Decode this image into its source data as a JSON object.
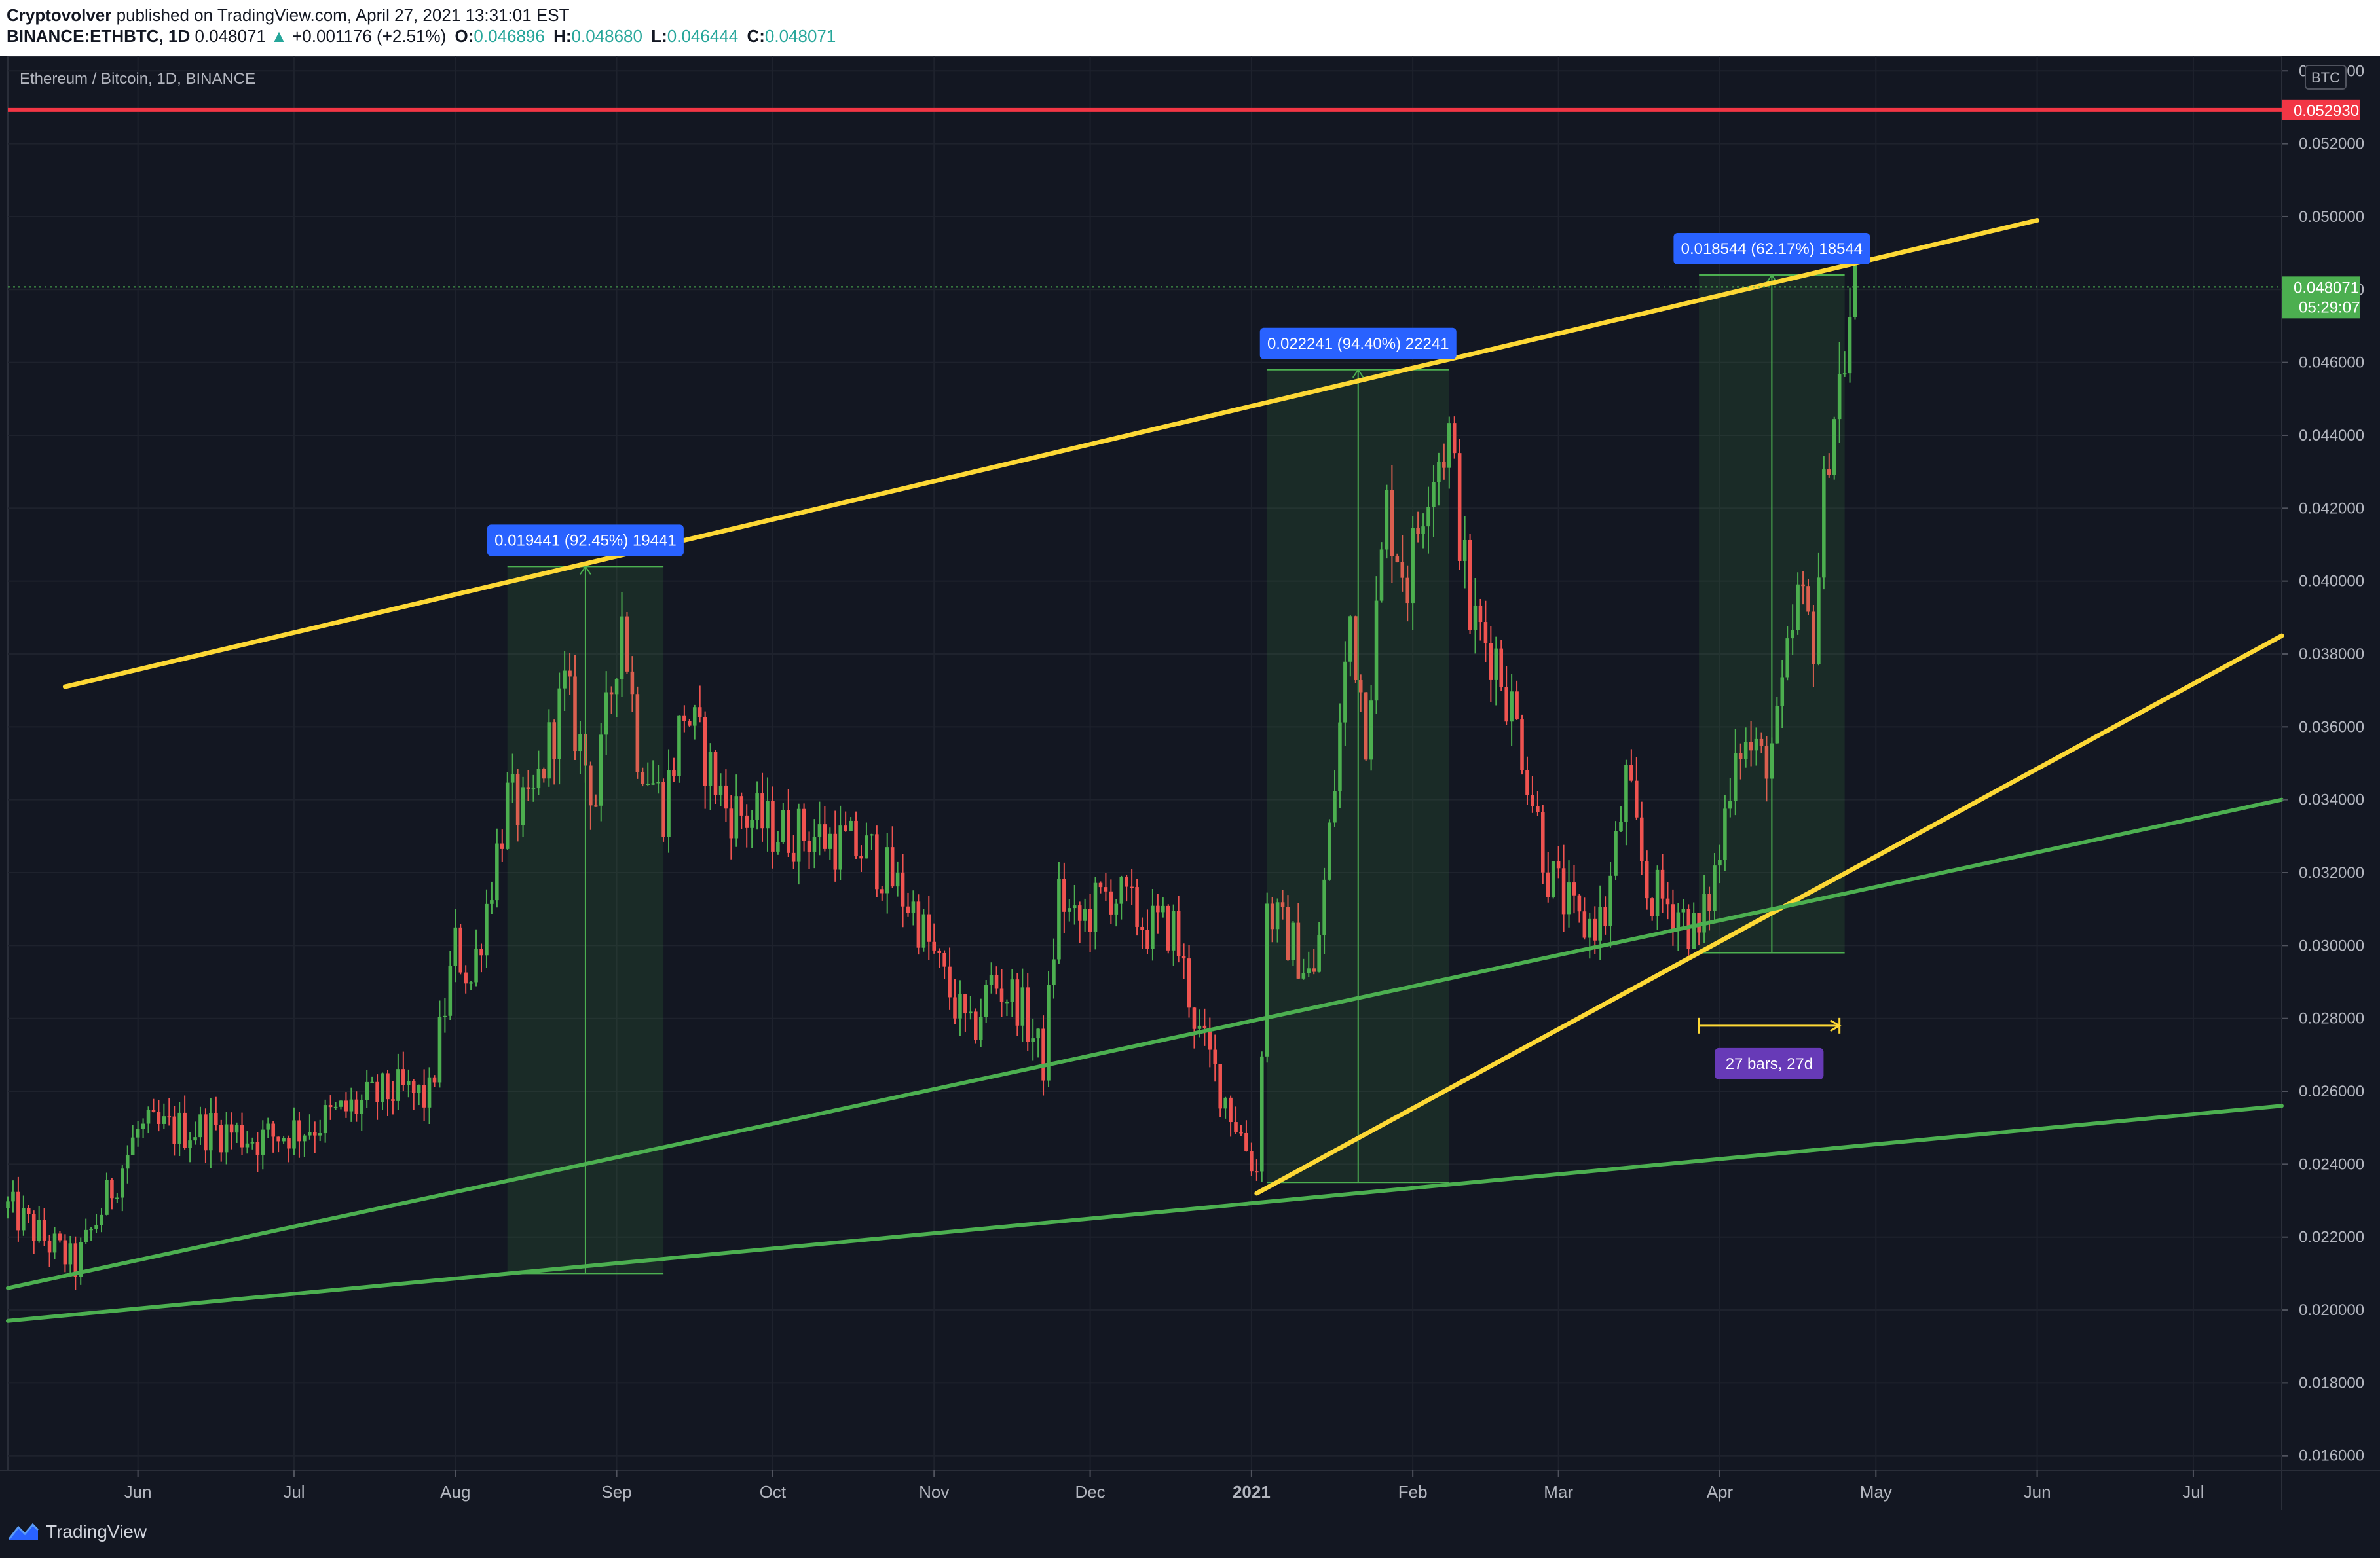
{
  "header": {
    "author": "Cryptovolver",
    "published_text": "published on TradingView.com, April 27, 2021 13:31:01 EST",
    "symbol": "BINANCE:ETHBTC, 1D",
    "last": "0.048071",
    "change": "+0.001176 (+2.51%)",
    "o_label": "O:",
    "o_value": "0.046896",
    "h_label": "H:",
    "h_value": "0.048680",
    "l_label": "L:",
    "l_value": "0.046444",
    "c_label": "C:",
    "c_value": "0.048071"
  },
  "chart_title": "Ethereum / Bitcoin, 1D, BINANCE",
  "currency_badge": "BTC",
  "footer": {
    "brand": "TradingView"
  },
  "colors": {
    "background": "#131722",
    "up": "#4caf50",
    "down": "#ef5350",
    "resistance": "#f23645",
    "trendline_yellow": "#fdd835",
    "trendline_green": "#4caf50",
    "measure_bg": "#2962ff",
    "range_bg": "#673ab7"
  },
  "chart_data": {
    "type": "candlestick",
    "title": "Ethereum / Bitcoin, 1D, BINANCE",
    "x_tick_labels": [
      "Jun",
      "Jul",
      "Aug",
      "Sep",
      "Oct",
      "Nov",
      "Dec",
      "2021",
      "Feb",
      "Mar",
      "Apr",
      "May",
      "Jun",
      "Jul"
    ],
    "x_tick_dates": [
      "2020-06-01",
      "2020-07-01",
      "2020-08-01",
      "2020-09-01",
      "2020-10-01",
      "2020-11-01",
      "2020-12-01",
      "2021-01-01",
      "2021-02-01",
      "2021-03-01",
      "2021-04-01",
      "2021-05-01",
      "2021-06-01",
      "2021-07-01"
    ],
    "y_tick_labels": [
      "0.016000",
      "0.018000",
      "0.020000",
      "0.022000",
      "0.024000",
      "0.026000",
      "0.028000",
      "0.030000",
      "0.032000",
      "0.034000",
      "0.036000",
      "0.038000",
      "0.040000",
      "0.042000",
      "0.044000",
      "0.046000",
      "0.048000",
      "0.050000",
      "0.052000",
      "0.054000"
    ],
    "ylim": [
      0.0156,
      0.0544
    ],
    "xlim": [
      "2020-05-07",
      "2021-07-18"
    ],
    "grid": true,
    "price_anchors": [
      [
        "2020-05-07",
        0.0228
      ],
      [
        "2020-05-20",
        0.0212
      ],
      [
        "2020-06-01",
        0.0249
      ],
      [
        "2020-06-15",
        0.025
      ],
      [
        "2020-06-25",
        0.0247
      ],
      [
        "2020-07-05",
        0.0251
      ],
      [
        "2020-07-20",
        0.026
      ],
      [
        "2020-07-27",
        0.0258
      ],
      [
        "2020-08-01",
        0.03
      ],
      [
        "2020-08-04",
        0.029
      ],
      [
        "2020-08-11",
        0.034
      ],
      [
        "2020-08-15",
        0.0335
      ],
      [
        "2020-08-22",
        0.037
      ],
      [
        "2020-08-28",
        0.034
      ],
      [
        "2020-09-02",
        0.0392
      ],
      [
        "2020-09-05",
        0.0355
      ],
      [
        "2020-09-10",
        0.0338
      ],
      [
        "2020-09-14",
        0.0365
      ],
      [
        "2020-09-22",
        0.0338
      ],
      [
        "2020-10-01",
        0.0332
      ],
      [
        "2020-10-10",
        0.033
      ],
      [
        "2020-10-20",
        0.0325
      ],
      [
        "2020-10-28",
        0.031
      ],
      [
        "2020-11-03",
        0.029
      ],
      [
        "2020-11-08",
        0.0275
      ],
      [
        "2020-11-12",
        0.029
      ],
      [
        "2020-11-17",
        0.0285
      ],
      [
        "2020-11-22",
        0.0268
      ],
      [
        "2020-11-25",
        0.0315
      ],
      [
        "2020-11-28",
        0.0305
      ],
      [
        "2020-12-05",
        0.0315
      ],
      [
        "2020-12-12",
        0.0305
      ],
      [
        "2020-12-17",
        0.0305
      ],
      [
        "2020-12-22",
        0.0275
      ],
      [
        "2020-12-28",
        0.0255
      ],
      [
        "2021-01-02",
        0.0238
      ],
      [
        "2021-01-04",
        0.031
      ],
      [
        "2021-01-09",
        0.03
      ],
      [
        "2021-01-13",
        0.029
      ],
      [
        "2021-01-16",
        0.033
      ],
      [
        "2021-01-20",
        0.039
      ],
      [
        "2021-01-23",
        0.036
      ],
      [
        "2021-01-27",
        0.042
      ],
      [
        "2021-01-31",
        0.04
      ],
      [
        "2021-02-04",
        0.043
      ],
      [
        "2021-02-08",
        0.044
      ],
      [
        "2021-02-12",
        0.039
      ],
      [
        "2021-02-17",
        0.038
      ],
      [
        "2021-02-22",
        0.0355
      ],
      [
        "2021-02-27",
        0.032
      ],
      [
        "2021-03-05",
        0.0305
      ],
      [
        "2021-03-10",
        0.0308
      ],
      [
        "2021-03-14",
        0.0345
      ],
      [
        "2021-03-18",
        0.0315
      ],
      [
        "2021-03-24",
        0.031
      ],
      [
        "2021-03-28",
        0.0302
      ],
      [
        "2021-04-01",
        0.0325
      ],
      [
        "2021-04-04",
        0.0358
      ],
      [
        "2021-04-09",
        0.035
      ],
      [
        "2021-04-12",
        0.0358
      ],
      [
        "2021-04-16",
        0.0395
      ],
      [
        "2021-04-19",
        0.0385
      ],
      [
        "2021-04-22",
        0.044
      ],
      [
        "2021-04-25",
        0.0462
      ],
      [
        "2021-04-27",
        0.048071
      ]
    ],
    "horizontal_line": {
      "price": 0.05293,
      "label": "0.052930"
    },
    "last_price": {
      "price": 0.048071,
      "label": "0.048071",
      "countdown": "05:29:07"
    },
    "trendlines": [
      {
        "color": "yellow",
        "from": [
          "2020-05-18",
          0.0371
        ],
        "to": [
          "2021-06-01",
          0.0499
        ]
      },
      {
        "color": "yellow",
        "from": [
          "2021-01-02",
          0.0232
        ],
        "to": [
          "2021-07-18",
          0.0385
        ]
      },
      {
        "color": "green",
        "from": [
          "2020-05-07",
          0.0206
        ],
        "to": [
          "2021-07-18",
          0.034
        ]
      },
      {
        "color": "green",
        "from": [
          "2020-05-07",
          0.0197
        ],
        "to": [
          "2021-07-18",
          0.0256
        ]
      }
    ],
    "measurements": [
      {
        "label": "0.019441 (92.45%) 19441",
        "from": [
          "2020-08-11",
          0.021
        ],
        "to": [
          "2020-09-10",
          0.0404
        ]
      },
      {
        "label": "0.022241 (94.40%) 22241",
        "from": [
          "2021-01-04",
          0.0235
        ],
        "to": [
          "2021-02-08",
          0.0458
        ]
      },
      {
        "label": "0.018544 (62.17%) 18544",
        "from": [
          "2021-03-28",
          0.0298
        ],
        "to": [
          "2021-04-25",
          0.0484
        ]
      }
    ],
    "date_range": {
      "label": "27 bars, 27d",
      "from": "2021-03-28",
      "to": "2021-04-24",
      "price": 0.0278
    }
  }
}
